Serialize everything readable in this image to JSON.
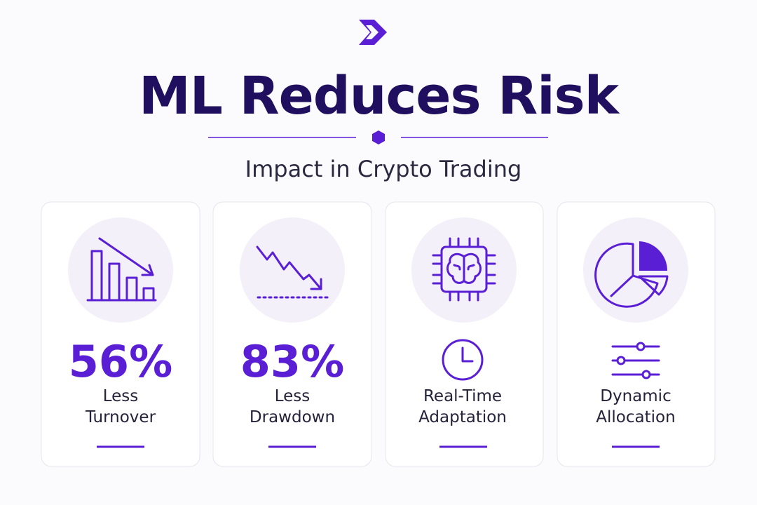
{
  "header": {
    "title": "ML Reduces Risk",
    "subtitle": "Impact in Crypto Trading"
  },
  "cards": [
    {
      "stat": "56%",
      "label": [
        "Less",
        "Turnover"
      ]
    },
    {
      "stat": "83%",
      "label": [
        "Less",
        "Drawdown"
      ]
    },
    {
      "label": [
        "Real-Time",
        "Adaptation"
      ]
    },
    {
      "label": [
        "Dynamic",
        "Allocation"
      ]
    }
  ]
}
